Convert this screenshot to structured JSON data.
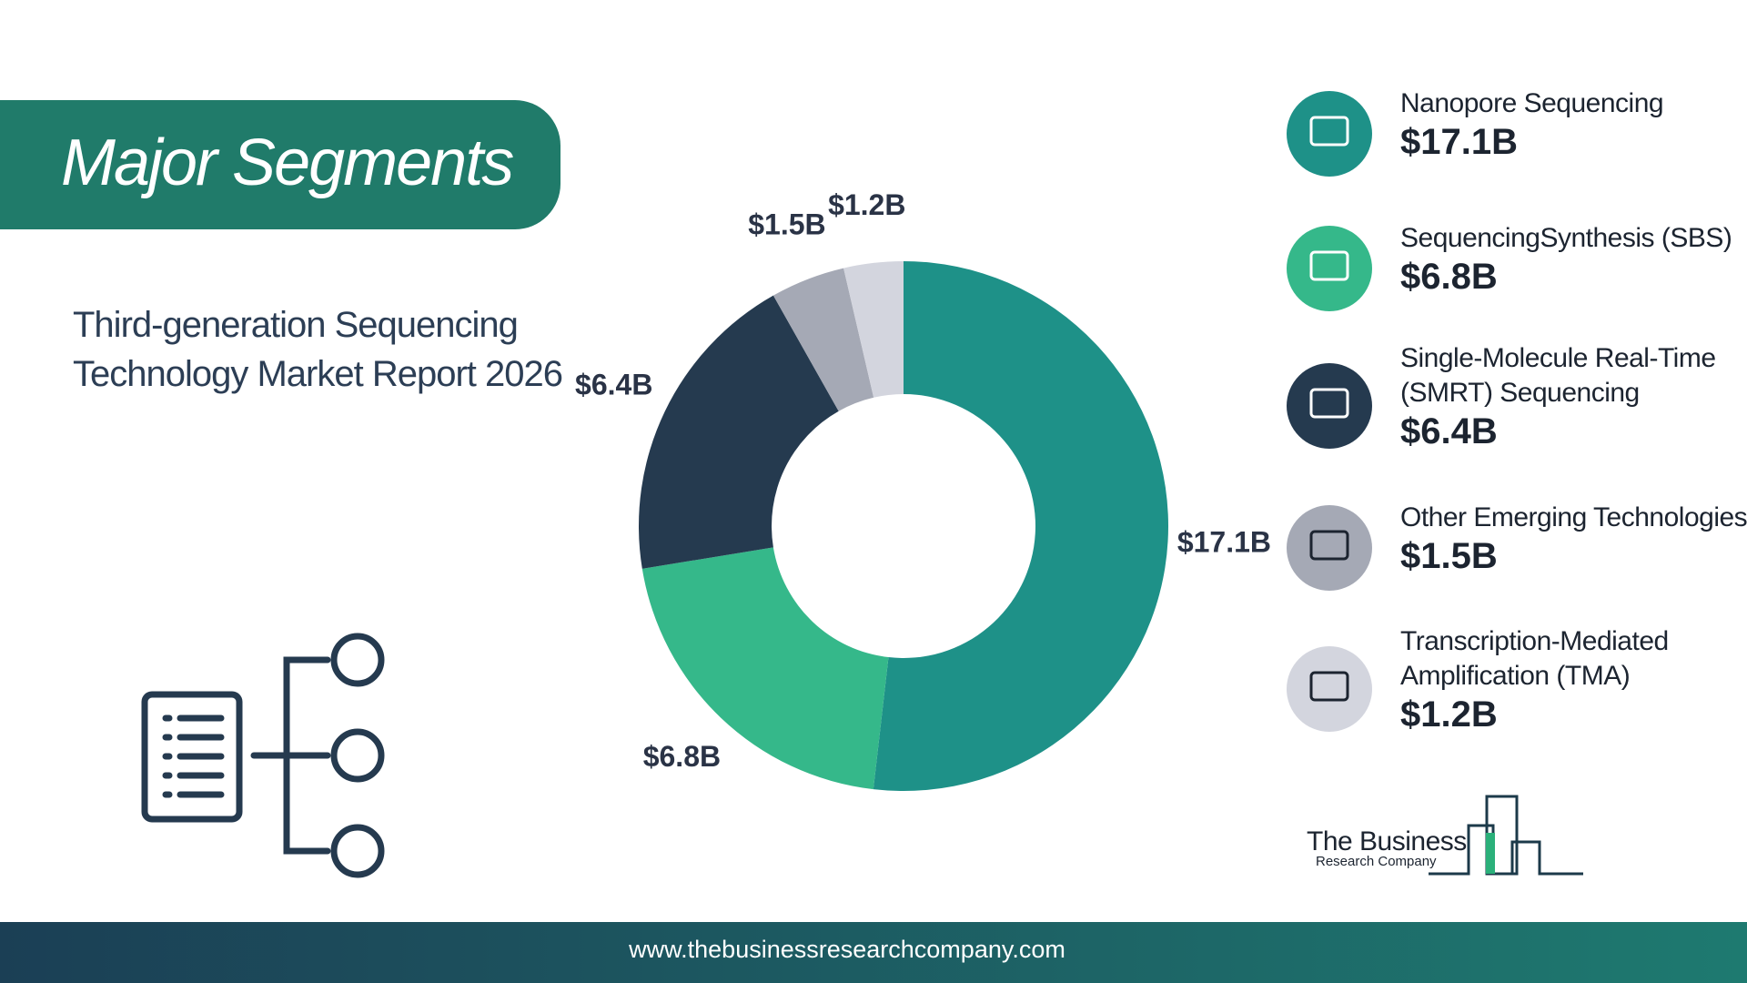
{
  "header": {
    "title": "Major Segments",
    "subtitle": "Third-generation Sequencing Technology Market Report 2026"
  },
  "chart_data": {
    "type": "donut",
    "categories": [
      "Nanopore Sequencing",
      "SequencingSynthesis (SBS)",
      "Single-Molecule Real-Time (SMRT) Sequencing",
      "Other Emerging Technologies",
      "Transcription-Mediated Amplification (TMA)"
    ],
    "values": [
      17.1,
      6.8,
      6.4,
      1.5,
      1.2
    ],
    "value_labels": [
      "$17.1B",
      "$6.8B",
      "$6.4B",
      "$1.5B",
      "$1.2B"
    ],
    "colors": [
      "#1e9188",
      "#35b88a",
      "#253a4f",
      "#a5a9b5",
      "#d3d5de"
    ]
  },
  "logo": {
    "line1": "The Business",
    "line2": "Research Company"
  },
  "footer": {
    "url": "www.thebusinessresearchcompany.com"
  }
}
